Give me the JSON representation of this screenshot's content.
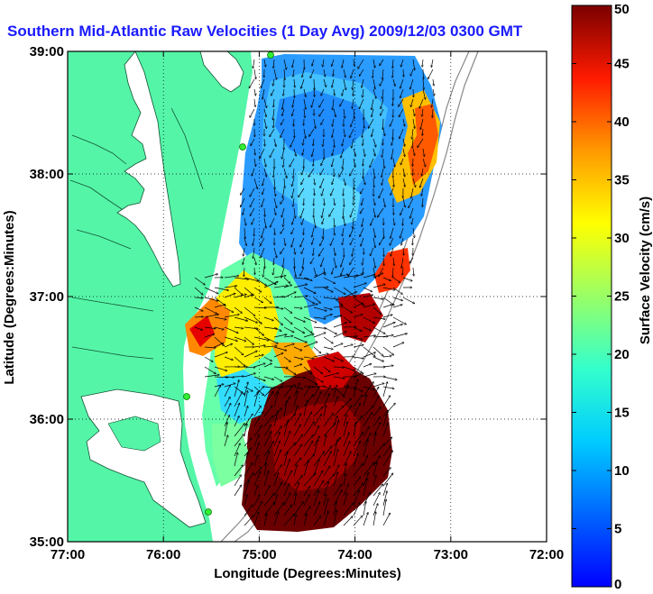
{
  "title": "Southern Mid-Atlantic Raw Velocities (1 Day Avg) 2009/12/03 0300 GMT",
  "xlabel": "Longitude (Degrees:Minutes)",
  "ylabel": "Latitude (Degrees:Minutes)",
  "x_ticks": [
    "77:00",
    "76:00",
    "75:00",
    "74:00",
    "73:00",
    "72:00"
  ],
  "y_ticks": [
    "39:00",
    "38:00",
    "37:00",
    "36:00",
    "35:00"
  ],
  "colorbar": {
    "label": "Surface Velocity (cm/s)",
    "ticks": [
      "50",
      "45",
      "40",
      "35",
      "30",
      "25",
      "20",
      "15",
      "10",
      "5",
      "0"
    ],
    "range": [
      0,
      50
    ],
    "colormap": "jet"
  },
  "colors": {
    "land": "#55f5a8",
    "water": "#ffffff",
    "title": "#1a1aff",
    "station": "#33ee33"
  },
  "map": {
    "lon_range": [
      -77,
      -72
    ],
    "lat_range": [
      35,
      39
    ],
    "grid": true
  }
}
